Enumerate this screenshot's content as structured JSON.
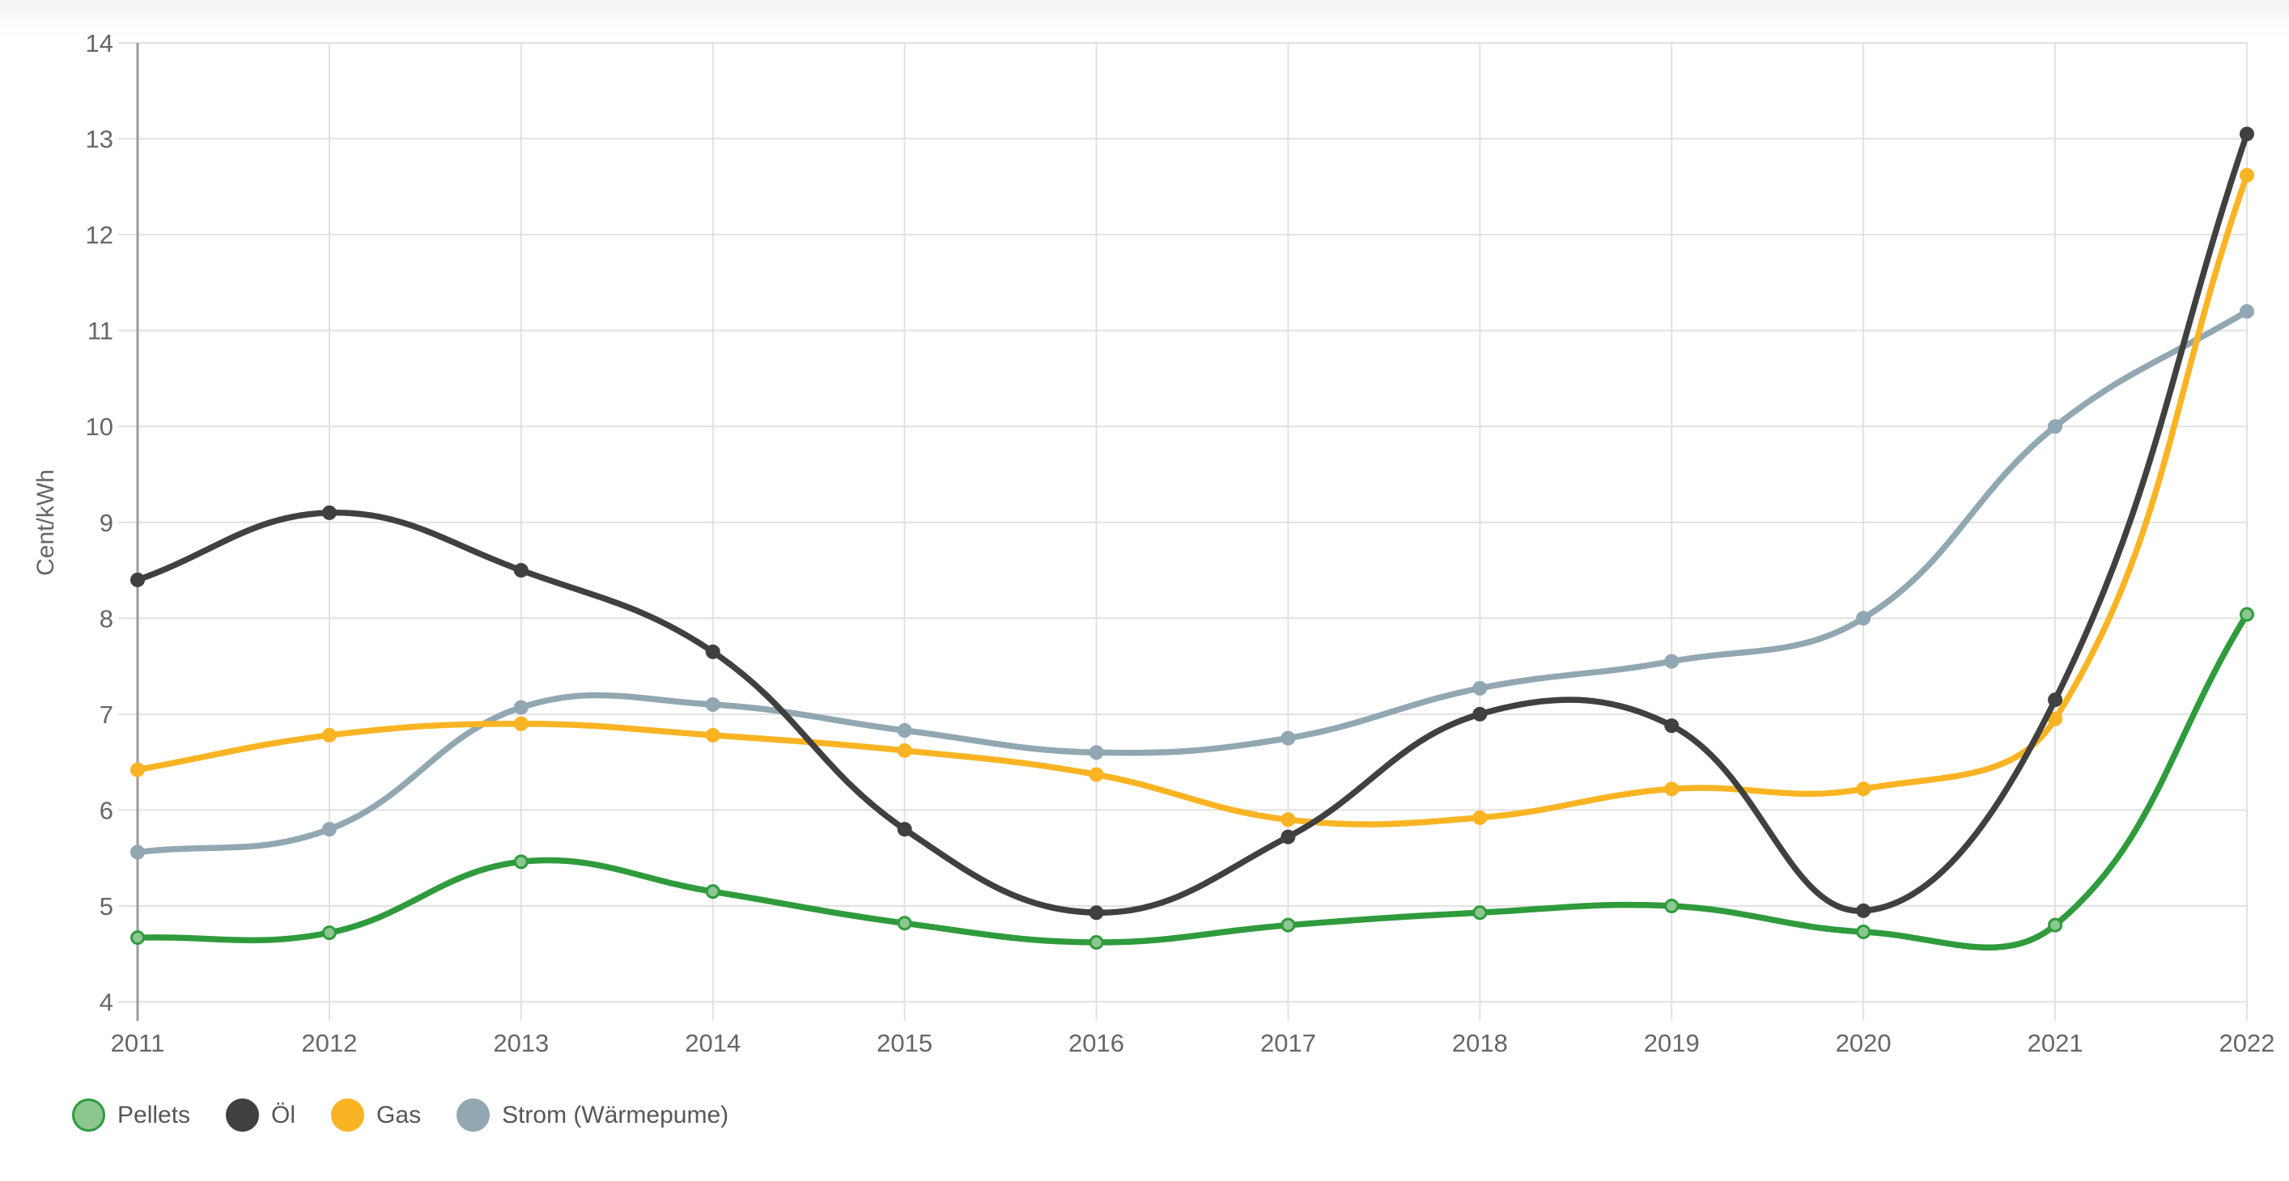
{
  "chart_data": {
    "type": "line",
    "title": "",
    "xlabel": "",
    "ylabel": "Cent/kWh",
    "x": [
      "2011",
      "2012",
      "2013",
      "2014",
      "2015",
      "2016",
      "2017",
      "2018",
      "2019",
      "2020",
      "2021",
      "2022"
    ],
    "series": [
      {
        "name": "Pellets",
        "color": "#2f9b3c",
        "point_fill": "#8cc690",
        "point_border": "#2f9b3c",
        "values": [
          4.67,
          4.72,
          5.46,
          5.15,
          4.82,
          4.62,
          4.8,
          4.93,
          5.0,
          4.73,
          4.8,
          8.04
        ]
      },
      {
        "name": "Öl",
        "color": "#404040",
        "point_fill": "#404040",
        "point_border": "#404040",
        "values": [
          8.4,
          9.1,
          8.5,
          7.65,
          5.8,
          4.93,
          5.72,
          7.0,
          6.88,
          4.95,
          7.15,
          13.05
        ]
      },
      {
        "name": "Gas",
        "color": "#fab423",
        "point_fill": "#fab423",
        "point_border": "#fab423",
        "values": [
          6.42,
          6.78,
          6.9,
          6.78,
          6.62,
          6.37,
          5.9,
          5.92,
          6.22,
          6.22,
          6.95,
          12.62
        ]
      },
      {
        "name": "Strom (Wärmepume)",
        "color": "#91a7b2",
        "point_fill": "#91a7b2",
        "point_border": "#91a7b2",
        "values": [
          5.56,
          5.8,
          7.07,
          7.1,
          6.83,
          6.6,
          6.75,
          7.27,
          7.55,
          8.0,
          10.0,
          11.2
        ]
      }
    ],
    "ylim": [
      4,
      14
    ],
    "yticks": [
      4,
      5,
      6,
      7,
      8,
      9,
      10,
      11,
      12,
      13,
      14
    ],
    "grid": true,
    "legend_position": "bottom-left",
    "line_tension": 0.4,
    "draw_order": [
      3,
      2,
      1,
      0
    ]
  },
  "style_colors": {
    "grid": "#e2e2e2",
    "axis": "#9b9b9b",
    "tick_text": "#666666"
  }
}
